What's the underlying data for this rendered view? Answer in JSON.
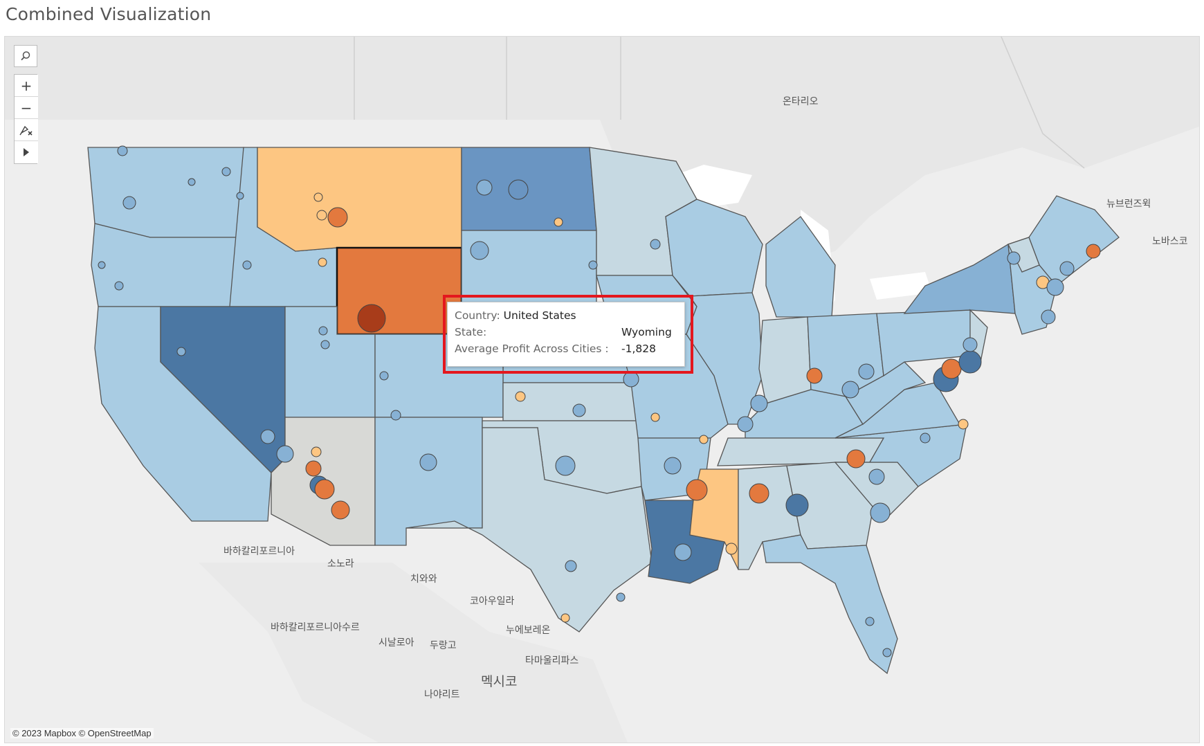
{
  "title": "Combined Visualization",
  "toolbar": {
    "search_icon": "search-icon",
    "zoom_in_label": "+",
    "zoom_out_label": "−",
    "pin_icon": "reset-pin-icon",
    "expand_icon": "play-arrow-icon"
  },
  "attribution": "© 2023 Mapbox © OpenStreetMap",
  "tooltip": {
    "country_label": "Country:",
    "country_value": "United States",
    "state_label": "State:",
    "state_value": "Wyoming",
    "profit_label": "Average Profit Across Cities :",
    "profit_value": "-1,828"
  },
  "map_labels": {
    "ontario": "온타리오",
    "new_brunswick": "뉴브런즈윅",
    "nova_scotia": "노바스코",
    "baja_california": "바하칼리포르니아",
    "sonora": "소노라",
    "chihuahua": "치와와",
    "coahuila": "코아우일라",
    "nuevo_leon": "누에보레온",
    "baja_california_sur": "바하칼리포르니아수르",
    "sinaloa": "시날로아",
    "durango": "두랑고",
    "tamaulipas": "타마울리파스",
    "mexico": "멕시코",
    "nayarit": "나야리트"
  },
  "colors": {
    "highlight": "#e4171e",
    "light_blue": "#a9cce3",
    "mid_blue": "#87b1d4",
    "dark_blue": "#4b77a3",
    "orange_light": "#fdc682",
    "orange_mid": "#e3793e",
    "grey_state": "#d8d9d6"
  }
}
